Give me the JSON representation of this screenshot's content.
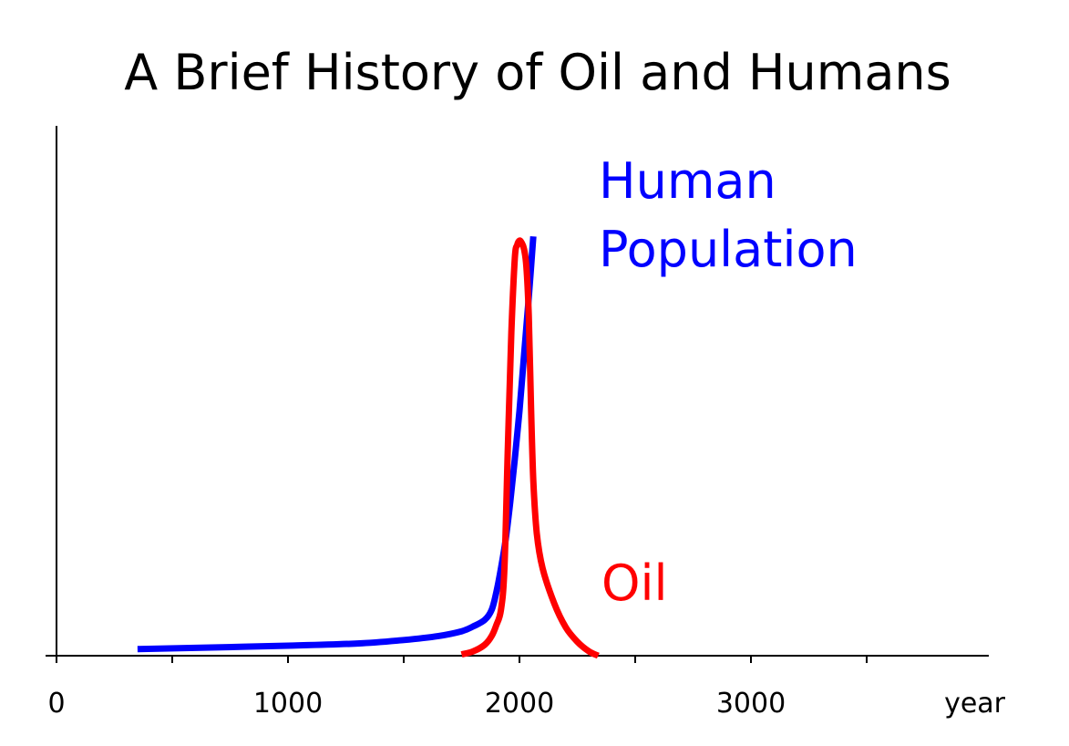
{
  "chart_data": {
    "type": "line",
    "title": "A Brief History of Oil and Humans",
    "xlabel": "year",
    "ylabel": "",
    "xlim": [
      0,
      4000
    ],
    "ylim": [
      0,
      100
    ],
    "grid": false,
    "legend": "none",
    "x_ticks": [
      0,
      500,
      1000,
      1500,
      2000,
      2500,
      3000,
      3500
    ],
    "x_tick_labels": [
      {
        "value": 0,
        "label": "0"
      },
      {
        "value": 1000,
        "label": "1000"
      },
      {
        "value": 2000,
        "label": "2000"
      },
      {
        "value": 3000,
        "label": "3000"
      }
    ],
    "series": [
      {
        "name": "Human\nPopulation",
        "color": "#0000ff",
        "x": [
          350,
          600,
          1000,
          1300,
          1500,
          1650,
          1750,
          1800,
          1850,
          1880,
          1900,
          1920,
          1940,
          1960,
          1980,
          2000,
          2020,
          2040,
          2060
        ],
        "y": [
          1.5,
          1.8,
          2.3,
          2.8,
          3.6,
          4.5,
          5.6,
          6.7,
          8.2,
          10.5,
          14.5,
          20.0,
          26.5,
          35.0,
          45.0,
          56.0,
          69.0,
          82.0,
          96.0
        ]
      },
      {
        "name": "Oil",
        "color": "#ff0000",
        "x": [
          1750,
          1800,
          1850,
          1880,
          1900,
          1920,
          1935,
          1950,
          1965,
          1980,
          1990,
          2000,
          2010,
          2020,
          2030,
          2040,
          2050,
          2060,
          2075,
          2100,
          2150,
          2200,
          2250,
          2300,
          2340
        ],
        "y": [
          0.3,
          1.0,
          2.5,
          4.5,
          7.0,
          10.5,
          20.0,
          48.0,
          74.0,
          91.0,
          94.0,
          95.0,
          94.5,
          93.0,
          89.0,
          78.0,
          57.0,
          40.0,
          28.0,
          20.0,
          12.0,
          6.5,
          3.2,
          1.0,
          0.0
        ]
      }
    ]
  }
}
